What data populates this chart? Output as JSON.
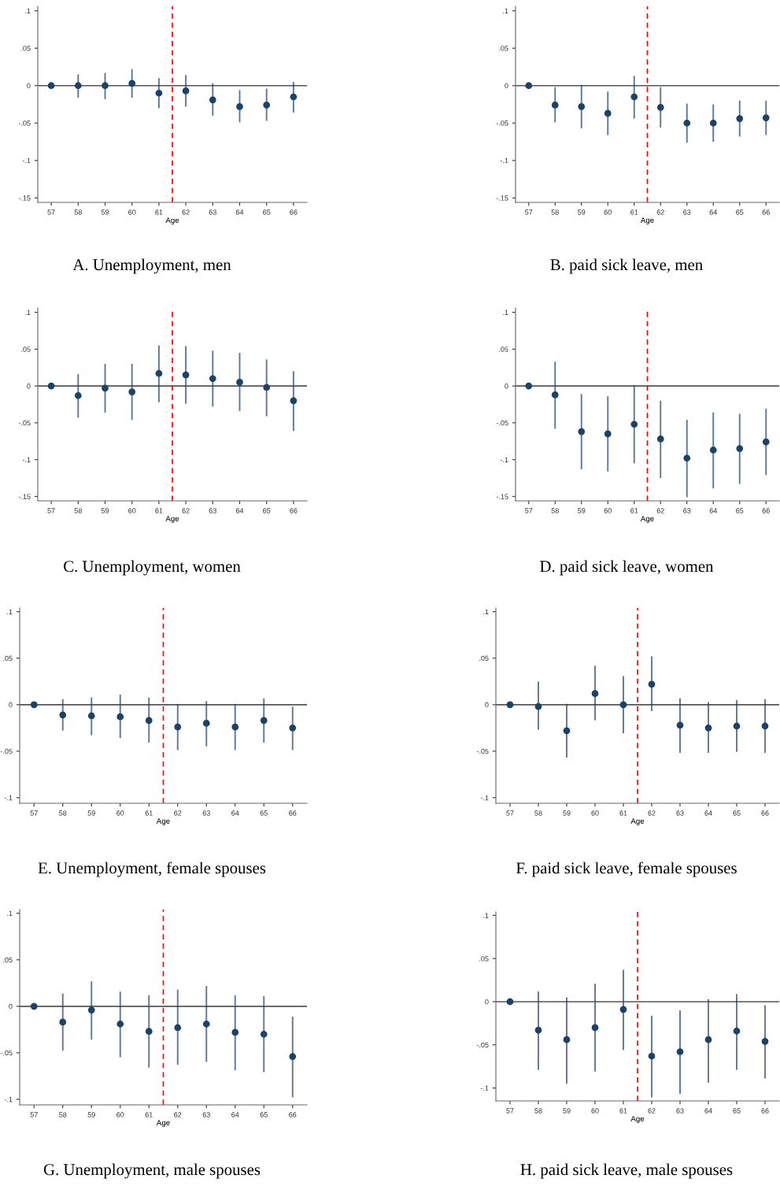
{
  "chart_data": [
    {
      "type": "scatter",
      "title": "A. Unemployment, men",
      "xlabel": "Age",
      "marker": "circle",
      "x": [
        57,
        58,
        59,
        60,
        61,
        62,
        63,
        64,
        65,
        66
      ],
      "xlim": [
        56.5,
        66.5
      ],
      "xticks": [
        57,
        58,
        59,
        60,
        61,
        62,
        63,
        64,
        65,
        66
      ],
      "ylim": [
        -0.156,
        0.106
      ],
      "yticks": [
        {
          "value": -0.15,
          "label": "-.15"
        },
        {
          "value": -0.1,
          "label": "-.1"
        },
        {
          "value": -0.05,
          "label": "-.05"
        },
        0,
        {
          "value": 0.05,
          "label": ".05"
        },
        {
          "value": 0.1,
          "label": ".1"
        }
      ],
      "series": [
        {
          "color": "#1b4268",
          "values": [
            0,
            0,
            0,
            0.003,
            -0.01,
            -0.007,
            -0.019,
            -0.028,
            -0.026,
            -0.015
          ],
          "errors": [
            null,
            [
              -0.015,
              0.014
            ],
            [
              -0.017,
              0.016
            ],
            [
              -0.015,
              0.021
            ],
            [
              -0.029,
              0.009
            ],
            [
              -0.027,
              0.013
            ],
            [
              -0.039,
              0.002
            ],
            [
              -0.048,
              -0.007
            ],
            [
              -0.046,
              -0.005
            ],
            [
              -0.035,
              0.004
            ]
          ]
        }
      ],
      "ref_lines": [
        {
          "axis": "y",
          "value": 0,
          "color": "#555555"
        },
        {
          "axis": "x",
          "value": 61.5,
          "color": "#ff0000",
          "line_style": "dashed"
        }
      ]
    },
    {
      "type": "scatter",
      "title": "B. paid sick leave, men",
      "xlabel": "Age",
      "marker": "circle",
      "x": [
        57,
        58,
        59,
        60,
        61,
        62,
        63,
        64,
        65,
        66
      ],
      "xlim": [
        56.5,
        66.5
      ],
      "xticks": [
        57,
        58,
        59,
        60,
        61,
        62,
        63,
        64,
        65,
        66
      ],
      "ylim": [
        -0.156,
        0.106
      ],
      "yticks": [
        {
          "value": -0.15,
          "label": "-.15"
        },
        {
          "value": -0.1,
          "label": "-.1"
        },
        {
          "value": -0.05,
          "label": "-.05"
        },
        0,
        {
          "value": 0.05,
          "label": ".05"
        },
        {
          "value": 0.1,
          "label": ".1"
        }
      ],
      "series": [
        {
          "color": "#1b4268",
          "values": [
            0,
            -0.026,
            -0.028,
            -0.037,
            -0.015,
            -0.029,
            -0.05,
            -0.05,
            -0.044,
            -0.043
          ],
          "errors": [
            null,
            [
              -0.048,
              -0.003
            ],
            [
              -0.056,
              0.0
            ],
            [
              -0.065,
              -0.009
            ],
            [
              -0.043,
              0.012
            ],
            [
              -0.055,
              -0.003
            ],
            [
              -0.075,
              -0.025
            ],
            [
              -0.074,
              -0.026
            ],
            [
              -0.067,
              -0.021
            ],
            [
              -0.065,
              -0.021
            ]
          ]
        }
      ],
      "ref_lines": [
        {
          "axis": "y",
          "value": 0,
          "color": "#555555"
        },
        {
          "axis": "x",
          "value": 61.5,
          "color": "#ff0000",
          "line_style": "dashed"
        }
      ]
    },
    {
      "type": "scatter",
      "title": "C. Unemployment, women",
      "xlabel": "Age",
      "marker": "circle",
      "x": [
        57,
        58,
        59,
        60,
        61,
        62,
        63,
        64,
        65,
        66
      ],
      "xlim": [
        56.5,
        66.5
      ],
      "xticks": [
        57,
        58,
        59,
        60,
        61,
        62,
        63,
        64,
        65,
        66
      ],
      "ylim": [
        -0.156,
        0.106
      ],
      "yticks": [
        {
          "value": -0.15,
          "label": "-.15"
        },
        {
          "value": -0.1,
          "label": "-.1"
        },
        {
          "value": -0.05,
          "label": "-.05"
        },
        0,
        {
          "value": 0.05,
          "label": ".05"
        },
        {
          "value": 0.1,
          "label": ".1"
        }
      ],
      "series": [
        {
          "color": "#1b4268",
          "values": [
            0,
            -0.013,
            -0.003,
            -0.008,
            0.017,
            0.015,
            0.01,
            0.005,
            -0.002,
            -0.02
          ],
          "errors": [
            null,
            [
              -0.042,
              0.015
            ],
            [
              -0.035,
              0.029
            ],
            [
              -0.045,
              0.029
            ],
            [
              -0.021,
              0.054
            ],
            [
              -0.023,
              0.053
            ],
            [
              -0.027,
              0.047
            ],
            [
              -0.033,
              0.044
            ],
            [
              -0.04,
              0.035
            ],
            [
              -0.06,
              0.019
            ]
          ]
        }
      ],
      "ref_lines": [
        {
          "axis": "y",
          "value": 0,
          "color": "#555555"
        },
        {
          "axis": "x",
          "value": 61.5,
          "color": "#ff0000",
          "line_style": "dashed"
        }
      ]
    },
    {
      "type": "scatter",
      "title": "D. paid sick leave, women",
      "xlabel": "Age",
      "marker": "circle",
      "x": [
        57,
        58,
        59,
        60,
        61,
        62,
        63,
        64,
        65,
        66
      ],
      "xlim": [
        56.5,
        66.5
      ],
      "xticks": [
        57,
        58,
        59,
        60,
        61,
        62,
        63,
        64,
        65,
        66
      ],
      "ylim": [
        -0.156,
        0.106
      ],
      "yticks": [
        {
          "value": -0.15,
          "label": "-.15"
        },
        {
          "value": -0.1,
          "label": "-.1"
        },
        {
          "value": -0.05,
          "label": "-.05"
        },
        0,
        {
          "value": 0.05,
          "label": ".05"
        },
        {
          "value": 0.1,
          "label": ".1"
        }
      ],
      "series": [
        {
          "color": "#1b4268",
          "values": [
            0,
            -0.012,
            -0.062,
            -0.065,
            -0.052,
            -0.072,
            -0.098,
            -0.087,
            -0.085,
            -0.076
          ],
          "errors": [
            null,
            [
              -0.057,
              0.032
            ],
            [
              -0.112,
              -0.012
            ],
            [
              -0.115,
              -0.015
            ],
            [
              -0.104,
              0.0
            ],
            [
              -0.124,
              -0.021
            ],
            [
              -0.15,
              -0.047
            ],
            [
              -0.138,
              -0.037
            ],
            [
              -0.132,
              -0.039
            ],
            [
              -0.12,
              -0.032
            ]
          ]
        }
      ],
      "ref_lines": [
        {
          "axis": "y",
          "value": 0,
          "color": "#555555"
        },
        {
          "axis": "x",
          "value": 61.5,
          "color": "#ff0000",
          "line_style": "dashed"
        }
      ]
    },
    {
      "type": "scatter",
      "title": "E. Unemployment, female spouses",
      "xlabel": "Age",
      "marker": "circle",
      "x": [
        57,
        58,
        59,
        60,
        61,
        62,
        63,
        64,
        65,
        66
      ],
      "xlim": [
        56.5,
        66.5
      ],
      "xticks": [
        57,
        58,
        59,
        60,
        61,
        62,
        63,
        64,
        65,
        66
      ],
      "ylim": [
        -0.106,
        0.104
      ],
      "yticks": [
        {
          "value": -0.1,
          "label": "-.1"
        },
        {
          "value": -0.05,
          "label": "-.05"
        },
        0,
        {
          "value": 0.05,
          "label": ".05"
        },
        {
          "value": 0.1,
          "label": ".1"
        }
      ],
      "series": [
        {
          "color": "#1b4268",
          "values": [
            0,
            -0.011,
            -0.012,
            -0.013,
            -0.017,
            -0.024,
            -0.02,
            -0.024,
            -0.017,
            -0.025
          ],
          "errors": [
            null,
            [
              -0.027,
              0.005
            ],
            [
              -0.032,
              0.007
            ],
            [
              -0.035,
              0.01
            ],
            [
              -0.04,
              0.007
            ],
            [
              -0.048,
              0.0
            ],
            [
              -0.044,
              0.003
            ],
            [
              -0.048,
              0.0
            ],
            [
              -0.04,
              0.006
            ],
            [
              -0.048,
              -0.003
            ]
          ]
        }
      ],
      "ref_lines": [
        {
          "axis": "y",
          "value": 0,
          "color": "#555555"
        },
        {
          "axis": "x",
          "value": 61.5,
          "color": "#ff0000",
          "line_style": "dashed"
        }
      ]
    },
    {
      "type": "scatter",
      "title": "F. paid sick leave, female spouses",
      "xlabel": "Age",
      "marker": "circle",
      "x": [
        57,
        58,
        59,
        60,
        61,
        62,
        63,
        64,
        65,
        66
      ],
      "xlim": [
        56.5,
        66.5
      ],
      "xticks": [
        57,
        58,
        59,
        60,
        61,
        62,
        63,
        64,
        65,
        66
      ],
      "ylim": [
        -0.106,
        0.104
      ],
      "yticks": [
        {
          "value": -0.1,
          "label": "-.1"
        },
        {
          "value": -0.05,
          "label": "-.05"
        },
        0,
        {
          "value": 0.05,
          "label": ".05"
        },
        {
          "value": 0.1,
          "label": ".1"
        }
      ],
      "series": [
        {
          "color": "#1b4268",
          "values": [
            0,
            -0.002,
            -0.028,
            0.012,
            0.0,
            0.022,
            -0.022,
            -0.025,
            -0.023,
            -0.023
          ],
          "errors": [
            null,
            [
              -0.026,
              0.024
            ],
            [
              -0.056,
              0.0
            ],
            [
              -0.016,
              0.041
            ],
            [
              -0.03,
              0.03
            ],
            [
              -0.006,
              0.051
            ],
            [
              -0.051,
              0.006
            ],
            [
              -0.051,
              0.002
            ],
            [
              -0.05,
              0.004
            ],
            [
              -0.051,
              0.005
            ]
          ]
        }
      ],
      "ref_lines": [
        {
          "axis": "y",
          "value": 0,
          "color": "#555555"
        },
        {
          "axis": "x",
          "value": 61.5,
          "color": "#ff0000",
          "line_style": "dashed"
        }
      ]
    },
    {
      "type": "scatter",
      "title": "G. Unemployment, male spouses",
      "xlabel": "Age",
      "marker": "circle",
      "x": [
        57,
        58,
        59,
        60,
        61,
        62,
        63,
        64,
        65,
        66
      ],
      "xlim": [
        56.5,
        66.5
      ],
      "xticks": [
        57,
        58,
        59,
        60,
        61,
        62,
        63,
        64,
        65,
        66
      ],
      "ylim": [
        -0.106,
        0.104
      ],
      "yticks": [
        {
          "value": -0.1,
          "label": "-.1"
        },
        {
          "value": -0.05,
          "label": "-.05"
        },
        0,
        {
          "value": 0.05,
          "label": ".05"
        },
        {
          "value": 0.1,
          "label": ".1"
        }
      ],
      "series": [
        {
          "color": "#1b4268",
          "values": [
            0,
            -0.017,
            -0.004,
            -0.019,
            -0.027,
            -0.023,
            -0.019,
            -0.028,
            -0.03,
            -0.054
          ],
          "errors": [
            null,
            [
              -0.047,
              0.013
            ],
            [
              -0.035,
              0.026
            ],
            [
              -0.054,
              0.015
            ],
            [
              -0.065,
              0.011
            ],
            [
              -0.062,
              0.017
            ],
            [
              -0.059,
              0.021
            ],
            [
              -0.068,
              0.011
            ],
            [
              -0.07,
              0.01
            ],
            [
              -0.097,
              -0.012
            ]
          ]
        }
      ],
      "ref_lines": [
        {
          "axis": "y",
          "value": 0,
          "color": "#555555"
        },
        {
          "axis": "x",
          "value": 61.5,
          "color": "#ff0000",
          "line_style": "dashed"
        }
      ]
    },
    {
      "type": "scatter",
      "title": "H. paid sick leave, male spouses",
      "xlabel": "Age",
      "marker": "circle",
      "x": [
        57,
        58,
        59,
        60,
        61,
        62,
        63,
        64,
        65,
        66
      ],
      "xlim": [
        56.5,
        66.5
      ],
      "xticks": [
        57,
        58,
        59,
        60,
        61,
        62,
        63,
        64,
        65,
        66
      ],
      "ylim": [
        -0.115,
        0.104
      ],
      "yticks": [
        {
          "value": -0.1,
          "label": "-.1"
        },
        {
          "value": -0.05,
          "label": "-.05"
        },
        0,
        {
          "value": 0.05,
          "label": ".05"
        },
        {
          "value": 0.1,
          "label": ".1"
        }
      ],
      "series": [
        {
          "color": "#1b4268",
          "values": [
            0,
            -0.033,
            -0.044,
            -0.03,
            -0.009,
            -0.063,
            -0.058,
            -0.044,
            -0.034,
            -0.046
          ],
          "errors": [
            null,
            [
              -0.078,
              0.011
            ],
            [
              -0.094,
              0.004
            ],
            [
              -0.08,
              0.02
            ],
            [
              -0.055,
              0.036
            ],
            [
              -0.11,
              -0.017
            ],
            [
              -0.106,
              -0.011
            ],
            [
              -0.093,
              0.002
            ],
            [
              -0.078,
              0.008
            ],
            [
              -0.088,
              -0.005
            ]
          ]
        }
      ],
      "ref_lines": [
        {
          "axis": "y",
          "value": 0,
          "color": "#555555"
        },
        {
          "axis": "x",
          "value": 61.5,
          "color": "#ff0000",
          "line_style": "dashed"
        }
      ]
    }
  ]
}
